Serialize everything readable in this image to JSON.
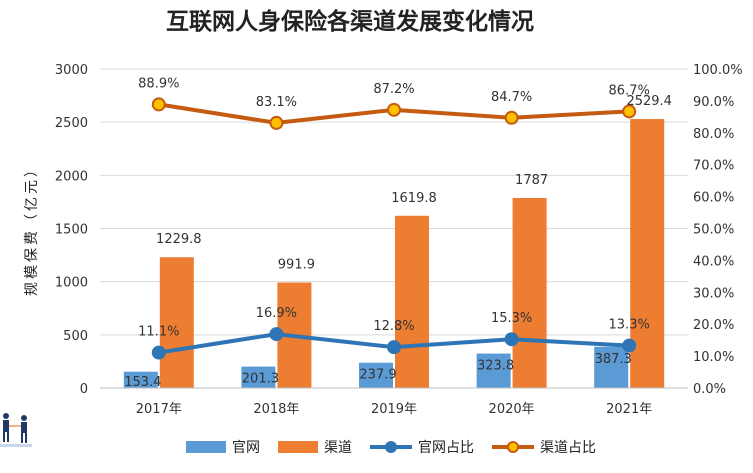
{
  "chart_data": {
    "type": "bar",
    "title": "互联网人身保险各渠道发展变化情况",
    "ylabel": "规模保费（亿元）",
    "categories": [
      "2017年",
      "2018年",
      "2019年",
      "2020年",
      "2021年"
    ],
    "ylim": [
      0,
      3000
    ],
    "y_ticks": [
      "0",
      "500",
      "1000",
      "1500",
      "2000",
      "2500",
      "3000"
    ],
    "y2lim": [
      0,
      100
    ],
    "y2_ticks": [
      "0.0%",
      "10.0%",
      "20.0%",
      "30.0%",
      "40.0%",
      "50.0%",
      "60.0%",
      "70.0%",
      "80.0%",
      "90.0%",
      "100.0%"
    ],
    "grid": true,
    "legend_position": "bottom",
    "series": [
      {
        "name": "官网",
        "type": "bar",
        "axis": "left",
        "color": "#5B9BD5",
        "values": [
          153.4,
          201.3,
          237.9,
          323.8,
          387.3
        ],
        "labels": [
          "153.4",
          "201.3",
          "237.9",
          "323.8",
          "387.3"
        ]
      },
      {
        "name": "渠道",
        "type": "bar",
        "axis": "left",
        "color": "#ED7D31",
        "values": [
          1229.8,
          991.9,
          1619.8,
          1787,
          2529.4
        ],
        "labels": [
          "1229.8",
          "991.9",
          "1619.8",
          "1787",
          "2529.4"
        ]
      },
      {
        "name": "官网占比",
        "type": "line",
        "axis": "right",
        "color": "#2E75B6",
        "values": [
          11.1,
          16.9,
          12.8,
          15.3,
          13.3
        ],
        "labels": [
          "11.1%",
          "16.9%",
          "12.8%",
          "15.3%",
          "13.3%"
        ]
      },
      {
        "name": "渠道占比",
        "type": "line",
        "axis": "right",
        "color": "#C55A11",
        "marker_color": "#FFC000",
        "values": [
          88.9,
          83.1,
          87.2,
          84.7,
          86.7
        ],
        "labels": [
          "88.9%",
          "83.1%",
          "87.2%",
          "84.7%",
          "86.7%"
        ]
      }
    ]
  }
}
